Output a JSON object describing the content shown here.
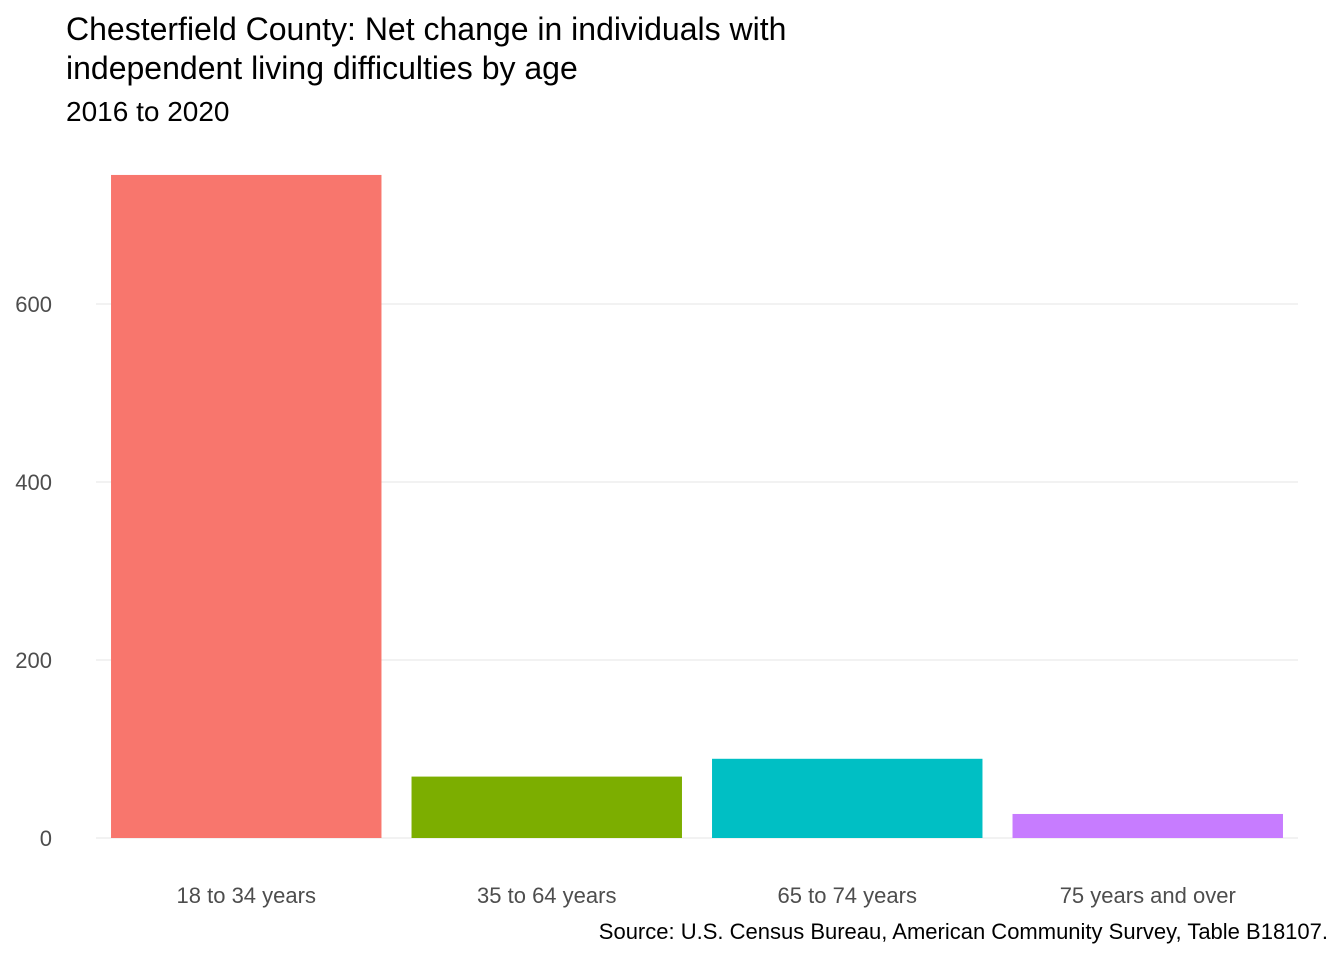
{
  "chart_data": {
    "type": "bar",
    "title": "Chesterfield County: Net change in individuals with independent living difficulties by age",
    "subtitle": "2016 to 2020",
    "caption": "Source: U.S. Census Bureau, American Community Survey, Table B18107.",
    "xlabel": "",
    "ylabel": "",
    "categories": [
      "18 to 34 years",
      "35 to 64 years",
      "65 to 74 years",
      "75 years and over"
    ],
    "values": [
      745,
      69,
      89,
      27
    ],
    "colors": [
      "#F8766D",
      "#7CAE00",
      "#00BFC4",
      "#C77CFF"
    ],
    "yticks": [
      0,
      200,
      400,
      600
    ],
    "ylim": [
      0,
      745
    ],
    "grid": "horizontal",
    "legend": "none"
  }
}
